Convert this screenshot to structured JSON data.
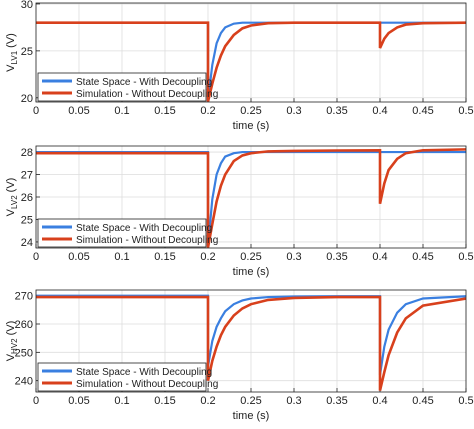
{
  "chart_data": [
    {
      "type": "line",
      "ylabel": "V",
      "ylabel_sub": "LV1",
      "ylabel_unit": "(V)",
      "xlabel": "time (s)",
      "x": [
        0,
        0.2,
        0.2,
        0.205,
        0.21,
        0.215,
        0.22,
        0.23,
        0.24,
        0.25,
        0.27,
        0.3,
        0.35,
        0.4,
        0.4,
        0.405,
        0.41,
        0.42,
        0.43,
        0.45,
        0.5
      ],
      "series": [
        {
          "name": "State Space - With Decoupling",
          "color": "#3a7fe0",
          "values": [
            28,
            28,
            19.7,
            23.5,
            25.8,
            26.9,
            27.5,
            27.9,
            28,
            28,
            28,
            28,
            28,
            28,
            28,
            28,
            28,
            28,
            28,
            28,
            28
          ]
        },
        {
          "name": "Simulation - Without Decoupling",
          "color": "#d8401c",
          "values": [
            28,
            28,
            19.6,
            21.5,
            23.2,
            24.5,
            25.5,
            26.7,
            27.4,
            27.7,
            27.95,
            28,
            28,
            28,
            25.3,
            26.3,
            26.9,
            27.5,
            27.8,
            27.95,
            28
          ]
        }
      ],
      "xlim": [
        0,
        0.5
      ],
      "xticks": [
        0,
        0.05,
        0.1,
        0.15,
        0.2,
        0.25,
        0.3,
        0.35,
        0.4,
        0.45,
        0.5
      ],
      "ylim": [
        19.55,
        30.1
      ],
      "yticks": [
        20,
        25,
        30
      ],
      "grid": true,
      "legend": "lower-left"
    },
    {
      "type": "line",
      "ylabel": "V",
      "ylabel_sub": "LV2",
      "ylabel_unit": "(V)",
      "xlabel": "time (s)",
      "x": [
        0,
        0.2,
        0.2,
        0.205,
        0.21,
        0.215,
        0.22,
        0.23,
        0.24,
        0.25,
        0.27,
        0.3,
        0.35,
        0.4,
        0.4,
        0.405,
        0.41,
        0.42,
        0.43,
        0.45,
        0.5
      ],
      "series": [
        {
          "name": "State Space - With Decoupling",
          "color": "#3a7fe0",
          "values": [
            28,
            28,
            23.8,
            25.9,
            27,
            27.5,
            27.8,
            27.95,
            28,
            28,
            28,
            28,
            28,
            28,
            28,
            28,
            28,
            28,
            28,
            28,
            28
          ]
        },
        {
          "name": "Simulation - Without Decoupling",
          "color": "#d8401c",
          "values": [
            27.95,
            27.95,
            23.75,
            24.8,
            25.8,
            26.5,
            27,
            27.6,
            27.85,
            27.95,
            28.03,
            28.05,
            28.07,
            28.08,
            25.7,
            26.6,
            27.2,
            27.7,
            27.95,
            28.08,
            28.12
          ]
        }
      ],
      "xlim": [
        0,
        0.5
      ],
      "xticks": [
        0,
        0.05,
        0.1,
        0.15,
        0.2,
        0.25,
        0.3,
        0.35,
        0.4,
        0.45,
        0.5
      ],
      "ylim": [
        23.73,
        28.27
      ],
      "yticks": [
        24,
        25,
        26,
        27,
        28
      ],
      "grid": true,
      "legend": "lower-left"
    },
    {
      "type": "line",
      "ylabel": "V",
      "ylabel_sub": "HV2",
      "ylabel_unit": "(V)",
      "xlabel": "time (s)",
      "x": [
        0,
        0.2,
        0.2,
        0.205,
        0.21,
        0.215,
        0.22,
        0.23,
        0.24,
        0.25,
        0.27,
        0.3,
        0.35,
        0.4,
        0.4,
        0.405,
        0.41,
        0.42,
        0.43,
        0.45,
        0.5
      ],
      "series": [
        {
          "name": "State Space - With Decoupling",
          "color": "#3a7fe0",
          "values": [
            270,
            270,
            245,
            254,
            259,
            262,
            264.5,
            267,
            268.3,
            269,
            269.5,
            269.7,
            269.8,
            269.8,
            242,
            252,
            258,
            264,
            267,
            269,
            269.8
          ]
        },
        {
          "name": "Simulation - Without Decoupling",
          "color": "#d8401c",
          "values": [
            269.5,
            269.5,
            240,
            247,
            252,
            256,
            259,
            263,
            265.5,
            267,
            268.5,
            269.2,
            269.5,
            269.5,
            236.5,
            243,
            249,
            257,
            262,
            266.5,
            269
          ]
        }
      ],
      "xlim": [
        0,
        0.5
      ],
      "xticks": [
        0,
        0.05,
        0.1,
        0.15,
        0.2,
        0.25,
        0.3,
        0.35,
        0.4,
        0.45,
        0.5
      ],
      "ylim": [
        236,
        272
      ],
      "yticks": [
        240,
        250,
        260,
        270
      ],
      "grid": true,
      "legend": "lower-left"
    }
  ]
}
